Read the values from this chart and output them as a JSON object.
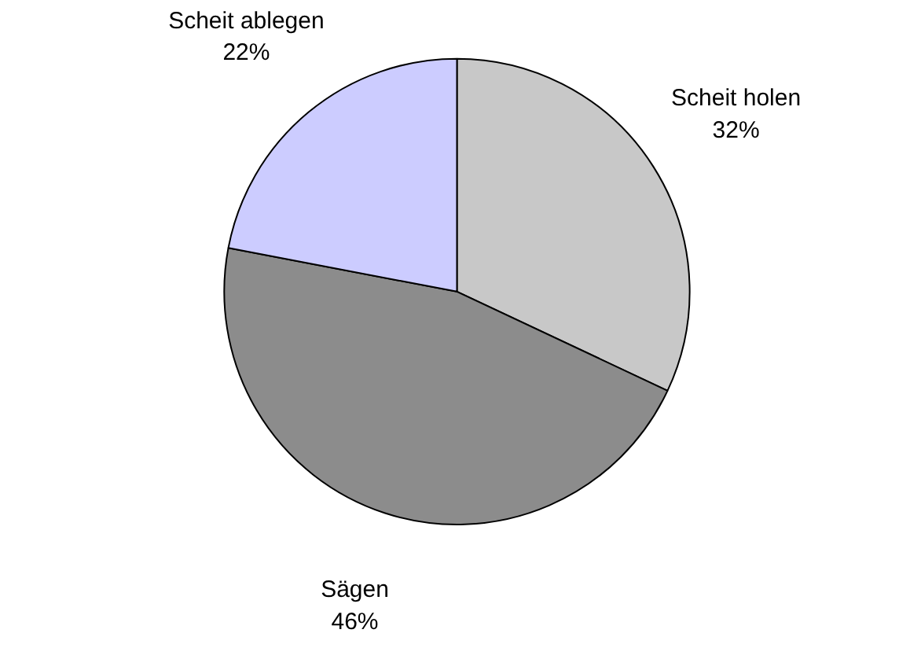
{
  "chart_data": {
    "type": "pie",
    "categories": [
      "Scheit holen",
      "Sägen",
      "Scheit ablegen"
    ],
    "values": [
      32,
      46,
      22
    ],
    "value_labels": [
      "32%",
      "46%",
      "22%"
    ],
    "colors": [
      "#c8c8c8",
      "#8c8c8c",
      "#ccccff"
    ]
  }
}
